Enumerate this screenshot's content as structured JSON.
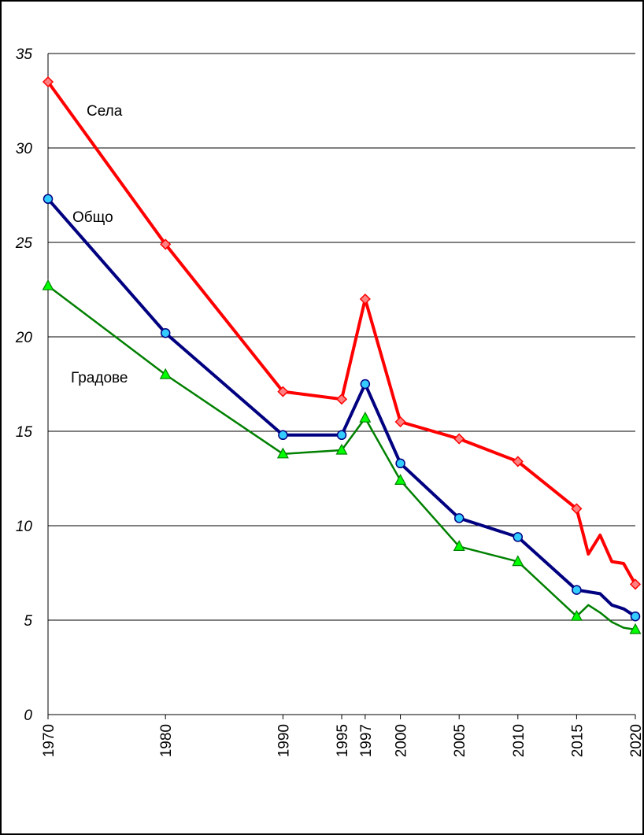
{
  "chart_data": {
    "type": "line",
    "title": "",
    "xlabel": "",
    "ylabel": "",
    "ylim": [
      0,
      35
    ],
    "xlim": [
      1970,
      2020
    ],
    "y_ticks": [
      0,
      5,
      10,
      15,
      20,
      25,
      30,
      35
    ],
    "x_ticks": [
      1970,
      1980,
      1990,
      1995,
      1997,
      2000,
      2005,
      2010,
      2015,
      2020
    ],
    "grid": "horizontal",
    "series": [
      {
        "name": "Села",
        "color": "#ff0000",
        "marker": "diamond",
        "marker_color": "#ff8080",
        "x": [
          1970,
          1980,
          1990,
          1995,
          1997,
          2000,
          2005,
          2010,
          2015,
          2016,
          2017,
          2018,
          2019,
          2020
        ],
        "y": [
          33.5,
          24.9,
          17.1,
          16.7,
          22.0,
          15.5,
          14.6,
          13.4,
          10.9,
          8.5,
          9.5,
          8.1,
          8.0,
          6.9
        ],
        "markers_at": [
          1970,
          1980,
          1990,
          1995,
          1997,
          2000,
          2005,
          2010,
          2015,
          2020
        ]
      },
      {
        "name": "Общо",
        "color": "#000080",
        "marker": "circle",
        "marker_color": "#33ccff",
        "x": [
          1970,
          1980,
          1990,
          1995,
          1997,
          2000,
          2005,
          2010,
          2015,
          2016,
          2017,
          2018,
          2019,
          2020
        ],
        "y": [
          27.3,
          20.2,
          14.8,
          14.8,
          17.5,
          13.3,
          10.4,
          9.4,
          6.6,
          6.5,
          6.4,
          5.8,
          5.6,
          5.2
        ],
        "markers_at": [
          1970,
          1980,
          1990,
          1995,
          1997,
          2000,
          2005,
          2010,
          2015,
          2020
        ]
      },
      {
        "name": "Градове",
        "color": "#008000",
        "marker": "triangle",
        "marker_color": "#00ff00",
        "x": [
          1970,
          1980,
          1990,
          1995,
          1997,
          2000,
          2005,
          2010,
          2015,
          2016,
          2017,
          2018,
          2019,
          2020
        ],
        "y": [
          22.7,
          18.0,
          13.8,
          14.0,
          15.7,
          12.4,
          8.9,
          8.1,
          5.2,
          5.8,
          5.4,
          4.9,
          4.6,
          4.5
        ],
        "markers_at": [
          1970,
          1980,
          1990,
          1995,
          1997,
          2000,
          2005,
          2010,
          2015,
          2020
        ]
      }
    ]
  }
}
